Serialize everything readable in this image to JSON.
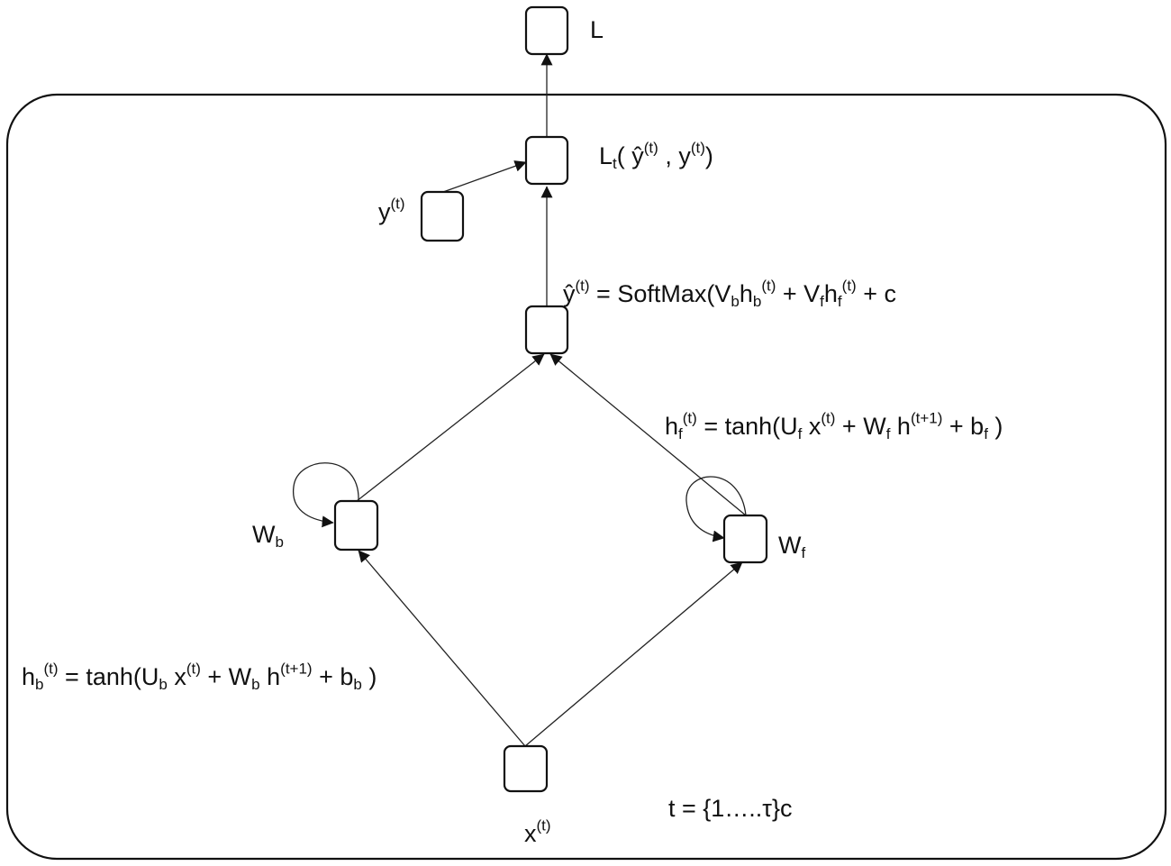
{
  "diagram": {
    "loss_total_label": "L",
    "loss_step": {
      "L": "L",
      "t": "t",
      "open": "( ",
      "yhat": "ŷ",
      "sup1": "(t)",
      "comma": " , y",
      "sup2": "(t)",
      "close": ")"
    },
    "target_label": {
      "base": "y",
      "sup": "(t)"
    },
    "output_eq": {
      "yhat": "ŷ",
      "sup0": "(t)",
      "eq": "  = SoftMax(V",
      "s1": "b",
      "h1": "h",
      "s2": "b",
      "p1": "(t)",
      "mid": " + V",
      "s3": "f",
      "h2": "h",
      "s4": "f",
      "p2": "(t)",
      "tail": " + c"
    },
    "forward_eq": {
      "h": "h",
      "s1": "f",
      "p1": "(t)",
      "mid": " = tanh(U",
      "s2": "f",
      "x": " x",
      "p2": "(t)",
      "plus": " +  W",
      "s3": "f",
      "h2": " h",
      "p3": "(t+1)",
      "b": " + b",
      "s4": "f",
      "close": " )"
    },
    "backward_eq": {
      "h": "h",
      "s1": "b",
      "p1": "(t)",
      "mid": " = tanh(U",
      "s2": "b",
      "x": " x",
      "p2": "(t)",
      "plus": " +  W",
      "s3": "b",
      "h2": " h",
      "p3": "(t+1)",
      "b": " + b",
      "s4": "b",
      "close": " )"
    },
    "wb_label": {
      "base": "W",
      "sub": "b"
    },
    "wf_label": {
      "base": "W",
      "sub": "f"
    },
    "input_label": {
      "base": "x",
      "sup": "(t)"
    },
    "time_label": "t = {1…..τ}c"
  }
}
